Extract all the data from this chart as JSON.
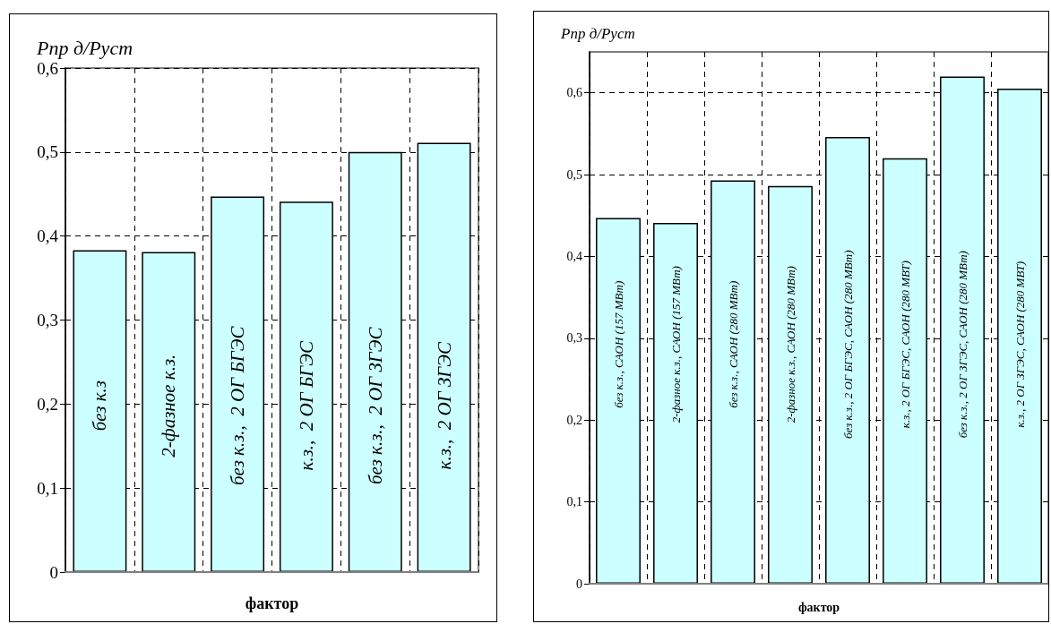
{
  "chart_data": [
    {
      "type": "bar",
      "ylabel": "Рпр д/Руст",
      "xlabel": "фактор",
      "categories": [
        "без к.з",
        "2-фазное к.з.",
        "без к.з.,  2 ОГ БГЭС",
        "к.з.,  2 ОГ БГЭС",
        "без к.з.,  2 ОГ ЗГЭС",
        "к.з.,  2 ОГ ЗГЭС"
      ],
      "values": [
        0.383,
        0.381,
        0.447,
        0.441,
        0.5,
        0.511
      ],
      "color": "#ccffff",
      "ylim": [
        0,
        0.6
      ],
      "yticks": [
        {
          "value": 0,
          "label": "0"
        },
        {
          "value": 0.1,
          "label": "0,1"
        },
        {
          "value": 0.2,
          "label": "0,2"
        },
        {
          "value": 0.3,
          "label": "0,3"
        },
        {
          "value": 0.4,
          "label": "0,4"
        },
        {
          "value": 0.5,
          "label": "0,5"
        },
        {
          "value": 0.6,
          "label": "0,6"
        }
      ],
      "grid": true
    },
    {
      "type": "bar",
      "ylabel": "Рпр д/Руст",
      "xlabel": "фактор",
      "categories": [
        "без к.з., САОН (157 МВт)",
        "2-фазное к.з., САОН (157 МВт)",
        "без к.з., САОН (280 МВт)",
        "2-фазное к.з., САОН (280 МВт)",
        "без к.з., 2 ОГ БГЭС, САОН (280 МВт)",
        "к.з., 2 ОГ БГЭС, САОН (280 МВТ)",
        "без к.з., 2 ОГ ЗГЭС, САОН (280 МВт)",
        "к.з., 2 ОГ ЗГЭС, САОН (280 МВТ)"
      ],
      "values": [
        0.447,
        0.441,
        0.493,
        0.486,
        0.546,
        0.52,
        0.62,
        0.605
      ],
      "color": "#ccffff",
      "ylim": [
        0,
        0.65
      ],
      "yticks": [
        {
          "value": 0,
          "label": "0"
        },
        {
          "value": 0.1,
          "label": "0,1"
        },
        {
          "value": 0.2,
          "label": "0,2"
        },
        {
          "value": 0.3,
          "label": "0,3"
        },
        {
          "value": 0.4,
          "label": "0,4"
        },
        {
          "value": 0.5,
          "label": "0,5"
        },
        {
          "value": 0.6,
          "label": "0,6"
        }
      ],
      "grid": true
    }
  ]
}
